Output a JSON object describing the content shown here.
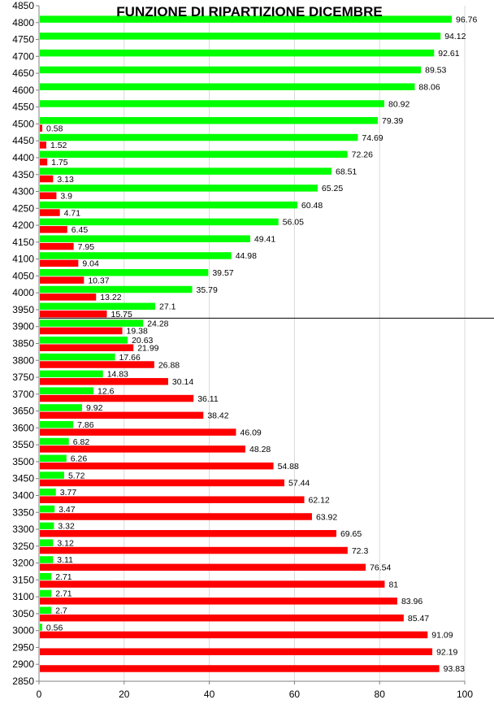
{
  "chart_data": {
    "type": "bar",
    "orientation": "horizontal",
    "title": "FUNZIONE DI RIPARTIZIONE DICEMBRE",
    "xlabel": "",
    "ylabel": "",
    "xlim": [
      0,
      100
    ],
    "ylim": [
      2850,
      4850
    ],
    "x_ticks": [
      0,
      20,
      40,
      60,
      80,
      100
    ],
    "grid": "vertical",
    "reference_line": 3925,
    "colors": {
      "green": "#00ff00",
      "red": "#ff0000",
      "grid": "#d9d9d9",
      "axis": "#808080"
    },
    "series": [
      {
        "color_key": "green",
        "points": [
          [
            4800,
            96.76
          ],
          [
            4750,
            94.12
          ],
          [
            4700,
            92.61
          ],
          [
            4650,
            89.53
          ],
          [
            4600,
            88.06
          ],
          [
            4550,
            80.92
          ],
          [
            4500,
            79.39
          ],
          [
            4450,
            74.69
          ],
          [
            4400,
            72.26
          ],
          [
            4350,
            68.51
          ],
          [
            4300,
            65.25
          ],
          [
            4250,
            60.48
          ],
          [
            4200,
            56.05
          ],
          [
            4150,
            49.41
          ],
          [
            4100,
            44.98
          ],
          [
            4050,
            39.57
          ],
          [
            4000,
            35.79
          ],
          [
            3950,
            27.1
          ],
          [
            3900,
            24.28
          ],
          [
            3850,
            20.63
          ],
          [
            3800,
            17.66
          ],
          [
            3750,
            14.83
          ],
          [
            3700,
            12.6
          ],
          [
            3650,
            9.92
          ],
          [
            3600,
            7.86
          ],
          [
            3550,
            6.82
          ],
          [
            3500,
            6.26
          ],
          [
            3450,
            5.72
          ],
          [
            3400,
            3.77
          ],
          [
            3350,
            3.47
          ],
          [
            3300,
            3.32
          ],
          [
            3250,
            3.12
          ],
          [
            3200,
            3.11
          ],
          [
            3150,
            2.71
          ],
          [
            3100,
            2.71
          ],
          [
            3050,
            2.7
          ],
          [
            3000,
            0.56
          ]
        ]
      },
      {
        "color_key": "red",
        "points": [
          [
            4500,
            0.58
          ],
          [
            4450,
            1.52
          ],
          [
            4400,
            1.75
          ],
          [
            4350,
            3.13
          ],
          [
            4300,
            3.9
          ],
          [
            4250,
            4.71
          ],
          [
            4200,
            6.45
          ],
          [
            4150,
            7.95
          ],
          [
            4100,
            9.04
          ],
          [
            4050,
            10.37
          ],
          [
            4000,
            13.22
          ],
          [
            3950,
            15.75
          ],
          [
            3900,
            19.38
          ],
          [
            3850,
            21.99
          ],
          [
            3800,
            26.88
          ],
          [
            3750,
            30.14
          ],
          [
            3700,
            36.11
          ],
          [
            3650,
            38.42
          ],
          [
            3600,
            46.09
          ],
          [
            3550,
            48.28
          ],
          [
            3500,
            54.88
          ],
          [
            3450,
            57.44
          ],
          [
            3400,
            62.12
          ],
          [
            3350,
            63.92
          ],
          [
            3300,
            69.65
          ],
          [
            3250,
            72.3
          ],
          [
            3200,
            76.54
          ],
          [
            3150,
            81
          ],
          [
            3100,
            83.96
          ],
          [
            3050,
            85.47
          ],
          [
            3000,
            91.09
          ],
          [
            2950,
            92.19
          ],
          [
            2900,
            93.83
          ]
        ]
      }
    ]
  }
}
